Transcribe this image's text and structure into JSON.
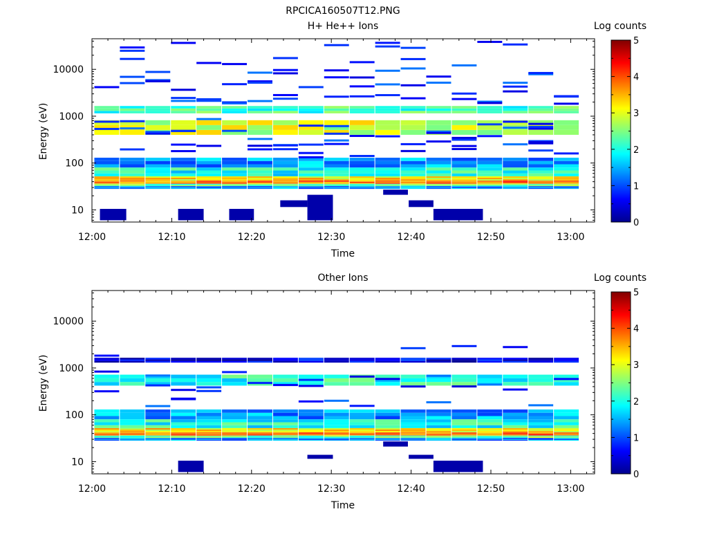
{
  "title": "RPCICA160507T12.PNG",
  "chart_data": [
    {
      "type": "heatmap",
      "title": "H+ He++ Ions",
      "xlabel": "Time",
      "ylabel": "Energy (eV)",
      "x_ticks": [
        "12:00",
        "12:10",
        "12:20",
        "12:30",
        "12:40",
        "12:50",
        "13:00"
      ],
      "y_ticks": [
        "10",
        "100",
        "1000",
        "10000"
      ],
      "y_scale": "log",
      "ylim": [
        5.5,
        45000
      ],
      "colorbar": {
        "label": "Log counts",
        "ticks": [
          "0",
          "1",
          "2",
          "3",
          "4",
          "5"
        ],
        "range": [
          0,
          5
        ]
      },
      "time_bins_minutes": [
        0.3,
        3.5,
        6.7,
        9.9,
        13.1,
        16.3,
        19.5,
        22.7,
        25.9,
        29.1,
        32.3,
        35.5,
        38.7,
        41.9,
        45.1,
        48.3,
        51.5,
        54.7,
        57.9,
        61.1
      ],
      "bands": [
        {
          "e_min": 1150,
          "e_max": 1650,
          "level": 2.2
        },
        {
          "e_min": 400,
          "e_max": 820,
          "level": 2.9
        },
        {
          "e_min": 80,
          "e_max": 130,
          "level": 1.4
        },
        {
          "e_min": 52,
          "e_max": 80,
          "level": 2.0
        },
        {
          "e_min": 42,
          "e_max": 52,
          "level": 3.2
        },
        {
          "e_min": 36,
          "e_max": 42,
          "level": 3.8
        },
        {
          "e_min": 32,
          "e_max": 36,
          "level": 2.4
        },
        {
          "e_min": 28,
          "e_max": 32,
          "level": 1.3
        }
      ],
      "sparse_lines_energy_range": [
        130,
        40000
      ],
      "low_energy_blocks": [
        {
          "t_start": 1.0,
          "t_end": 4.3,
          "e_min": 6.0,
          "e_max": 10.5
        },
        {
          "t_start": 10.8,
          "t_end": 14.0,
          "e_min": 6.0,
          "e_max": 10.5
        },
        {
          "t_start": 17.2,
          "t_end": 20.3,
          "e_min": 6.0,
          "e_max": 10.5
        },
        {
          "t_start": 27.0,
          "t_end": 30.2,
          "e_min": 6.0,
          "e_max": 21.0
        },
        {
          "t_start": 23.6,
          "t_end": 27.0,
          "e_min": 11.5,
          "e_max": 16.0
        },
        {
          "t_start": 42.8,
          "t_end": 49.0,
          "e_min": 6.0,
          "e_max": 10.5
        },
        {
          "t_start": 39.7,
          "t_end": 42.8,
          "e_min": 11.5,
          "e_max": 16.0
        },
        {
          "t_start": 36.5,
          "t_end": 39.6,
          "e_min": 21.0,
          "e_max": 27.0
        }
      ]
    },
    {
      "type": "heatmap",
      "title": "Other Ions",
      "xlabel": "Time",
      "ylabel": "Energy (eV)",
      "x_ticks": [
        "12:00",
        "12:10",
        "12:20",
        "12:30",
        "12:40",
        "12:50",
        "13:00"
      ],
      "y_ticks": [
        "10",
        "100",
        "1000",
        "10000"
      ],
      "y_scale": "log",
      "ylim": [
        5.5,
        45000
      ],
      "colorbar": {
        "label": "Log counts",
        "ticks": [
          "0",
          "1",
          "2",
          "3",
          "4",
          "5"
        ],
        "range": [
          0,
          5
        ]
      },
      "time_bins_minutes": [
        0.3,
        3.5,
        6.7,
        9.9,
        13.1,
        16.3,
        19.5,
        22.7,
        25.9,
        29.1,
        32.3,
        35.5,
        38.7,
        41.9,
        45.1,
        48.3,
        51.5,
        54.7,
        57.9,
        61.1
      ],
      "bands": [
        {
          "e_min": 1300,
          "e_max": 1650,
          "level": 0.5
        },
        {
          "e_min": 420,
          "e_max": 720,
          "level": 2.0
        },
        {
          "e_min": 80,
          "e_max": 130,
          "level": 1.4
        },
        {
          "e_min": 52,
          "e_max": 80,
          "level": 2.0
        },
        {
          "e_min": 42,
          "e_max": 52,
          "level": 3.2
        },
        {
          "e_min": 36,
          "e_max": 42,
          "level": 3.8
        },
        {
          "e_min": 32,
          "e_max": 36,
          "level": 2.4
        },
        {
          "e_min": 28,
          "e_max": 32,
          "level": 1.3
        }
      ],
      "sparse_lines_energy_range": [
        130,
        3200
      ],
      "low_energy_blocks": [
        {
          "t_start": 10.8,
          "t_end": 14.0,
          "e_min": 6.0,
          "e_max": 10.5
        },
        {
          "t_start": 27.0,
          "t_end": 30.2,
          "e_min": 11.5,
          "e_max": 14.0
        },
        {
          "t_start": 42.8,
          "t_end": 49.0,
          "e_min": 6.0,
          "e_max": 10.5
        },
        {
          "t_start": 39.7,
          "t_end": 42.8,
          "e_min": 11.5,
          "e_max": 14.0
        },
        {
          "t_start": 36.5,
          "t_end": 39.6,
          "e_min": 21.0,
          "e_max": 27.0
        }
      ]
    }
  ]
}
